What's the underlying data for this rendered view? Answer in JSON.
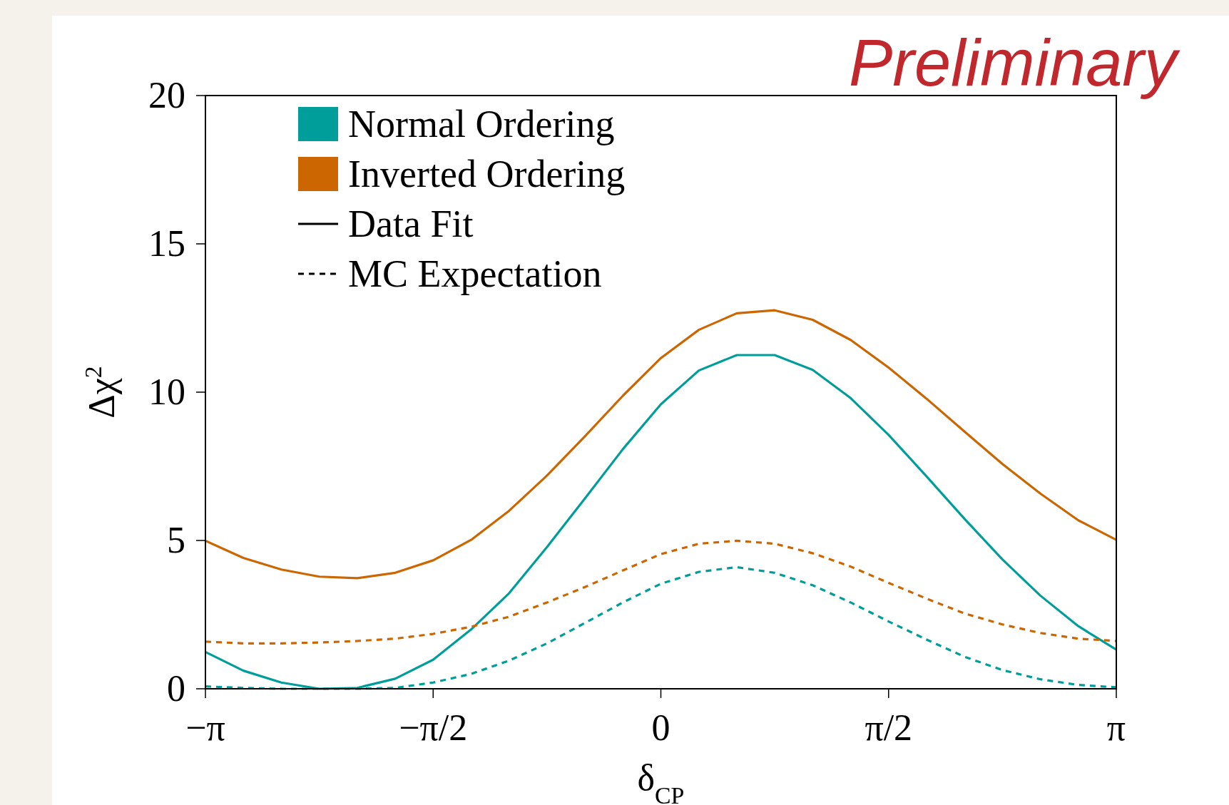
{
  "chart_data": {
    "type": "line",
    "xlabel": "δ$_{CP}$",
    "ylabel": "Δχ$^{2}$",
    "x": [
      -3.1416,
      -2.8798,
      -2.618,
      -2.3562,
      -2.0944,
      -1.8326,
      -1.5708,
      -1.309,
      -1.0472,
      -0.7854,
      -0.5236,
      -0.2618,
      0,
      0.2618,
      0.5236,
      0.7854,
      1.0472,
      1.309,
      1.5708,
      1.8326,
      2.0944,
      2.3562,
      2.618,
      2.8798,
      3.1416
    ],
    "series": [
      {
        "name": "Normal Ordering",
        "color": "#009e9a",
        "line_style": "solid",
        "values": [
          1.24,
          0.61,
          0.21,
          0,
          0.03,
          0.34,
          0.98,
          2.0,
          3.22,
          4.78,
          6.42,
          8.08,
          9.59,
          10.73,
          11.25,
          11.25,
          10.75,
          9.8,
          8.56,
          7.16,
          5.73,
          4.36,
          3.14,
          2.11,
          1.32
        ]
      },
      {
        "name": "Inverted Ordering",
        "color": "#cc6600",
        "line_style": "solid",
        "values": [
          4.99,
          4.41,
          4.02,
          3.78,
          3.73,
          3.91,
          4.33,
          5.02,
          6.0,
          7.19,
          8.51,
          9.88,
          11.15,
          12.1,
          12.66,
          12.76,
          12.44,
          11.76,
          10.83,
          9.78,
          8.67,
          7.58,
          6.58,
          5.68,
          5.02
        ]
      },
      {
        "color": "#009e9a",
        "line_style": "dashed",
        "values": [
          0.08,
          0.03,
          0,
          0,
          0,
          0.03,
          0.21,
          0.5,
          0.95,
          1.53,
          2.22,
          2.91,
          3.54,
          3.94,
          4.1,
          3.91,
          3.49,
          2.91,
          2.27,
          1.66,
          1.08,
          0.63,
          0.32,
          0.13,
          0.05
        ]
      },
      {
        "color": "#cc6600",
        "line_style": "dashed",
        "values": [
          1.59,
          1.53,
          1.53,
          1.56,
          1.61,
          1.69,
          1.85,
          2.09,
          2.43,
          2.91,
          3.43,
          3.99,
          4.54,
          4.89,
          4.99,
          4.89,
          4.57,
          4.12,
          3.57,
          3.04,
          2.54,
          2.17,
          1.88,
          1.69,
          1.61
        ]
      }
    ],
    "xlim": [
      -3.1416,
      3.1416
    ],
    "xticks": [
      {
        "value": -3.1416,
        "label": "−π"
      },
      {
        "value": -1.5708,
        "label": "−π/2"
      },
      0,
      {
        "value": 1.5708,
        "label": "π/2"
      },
      {
        "value": 3.1416,
        "label": "π"
      }
    ],
    "ylim": [
      0,
      20
    ],
    "yticks": [
      0,
      5,
      10,
      15,
      20
    ],
    "legend": "top left",
    "grid": false,
    "marker": "none",
    "annotations": [
      "Preliminary",
      "Data Fit",
      "MC Expectation"
    ]
  }
}
